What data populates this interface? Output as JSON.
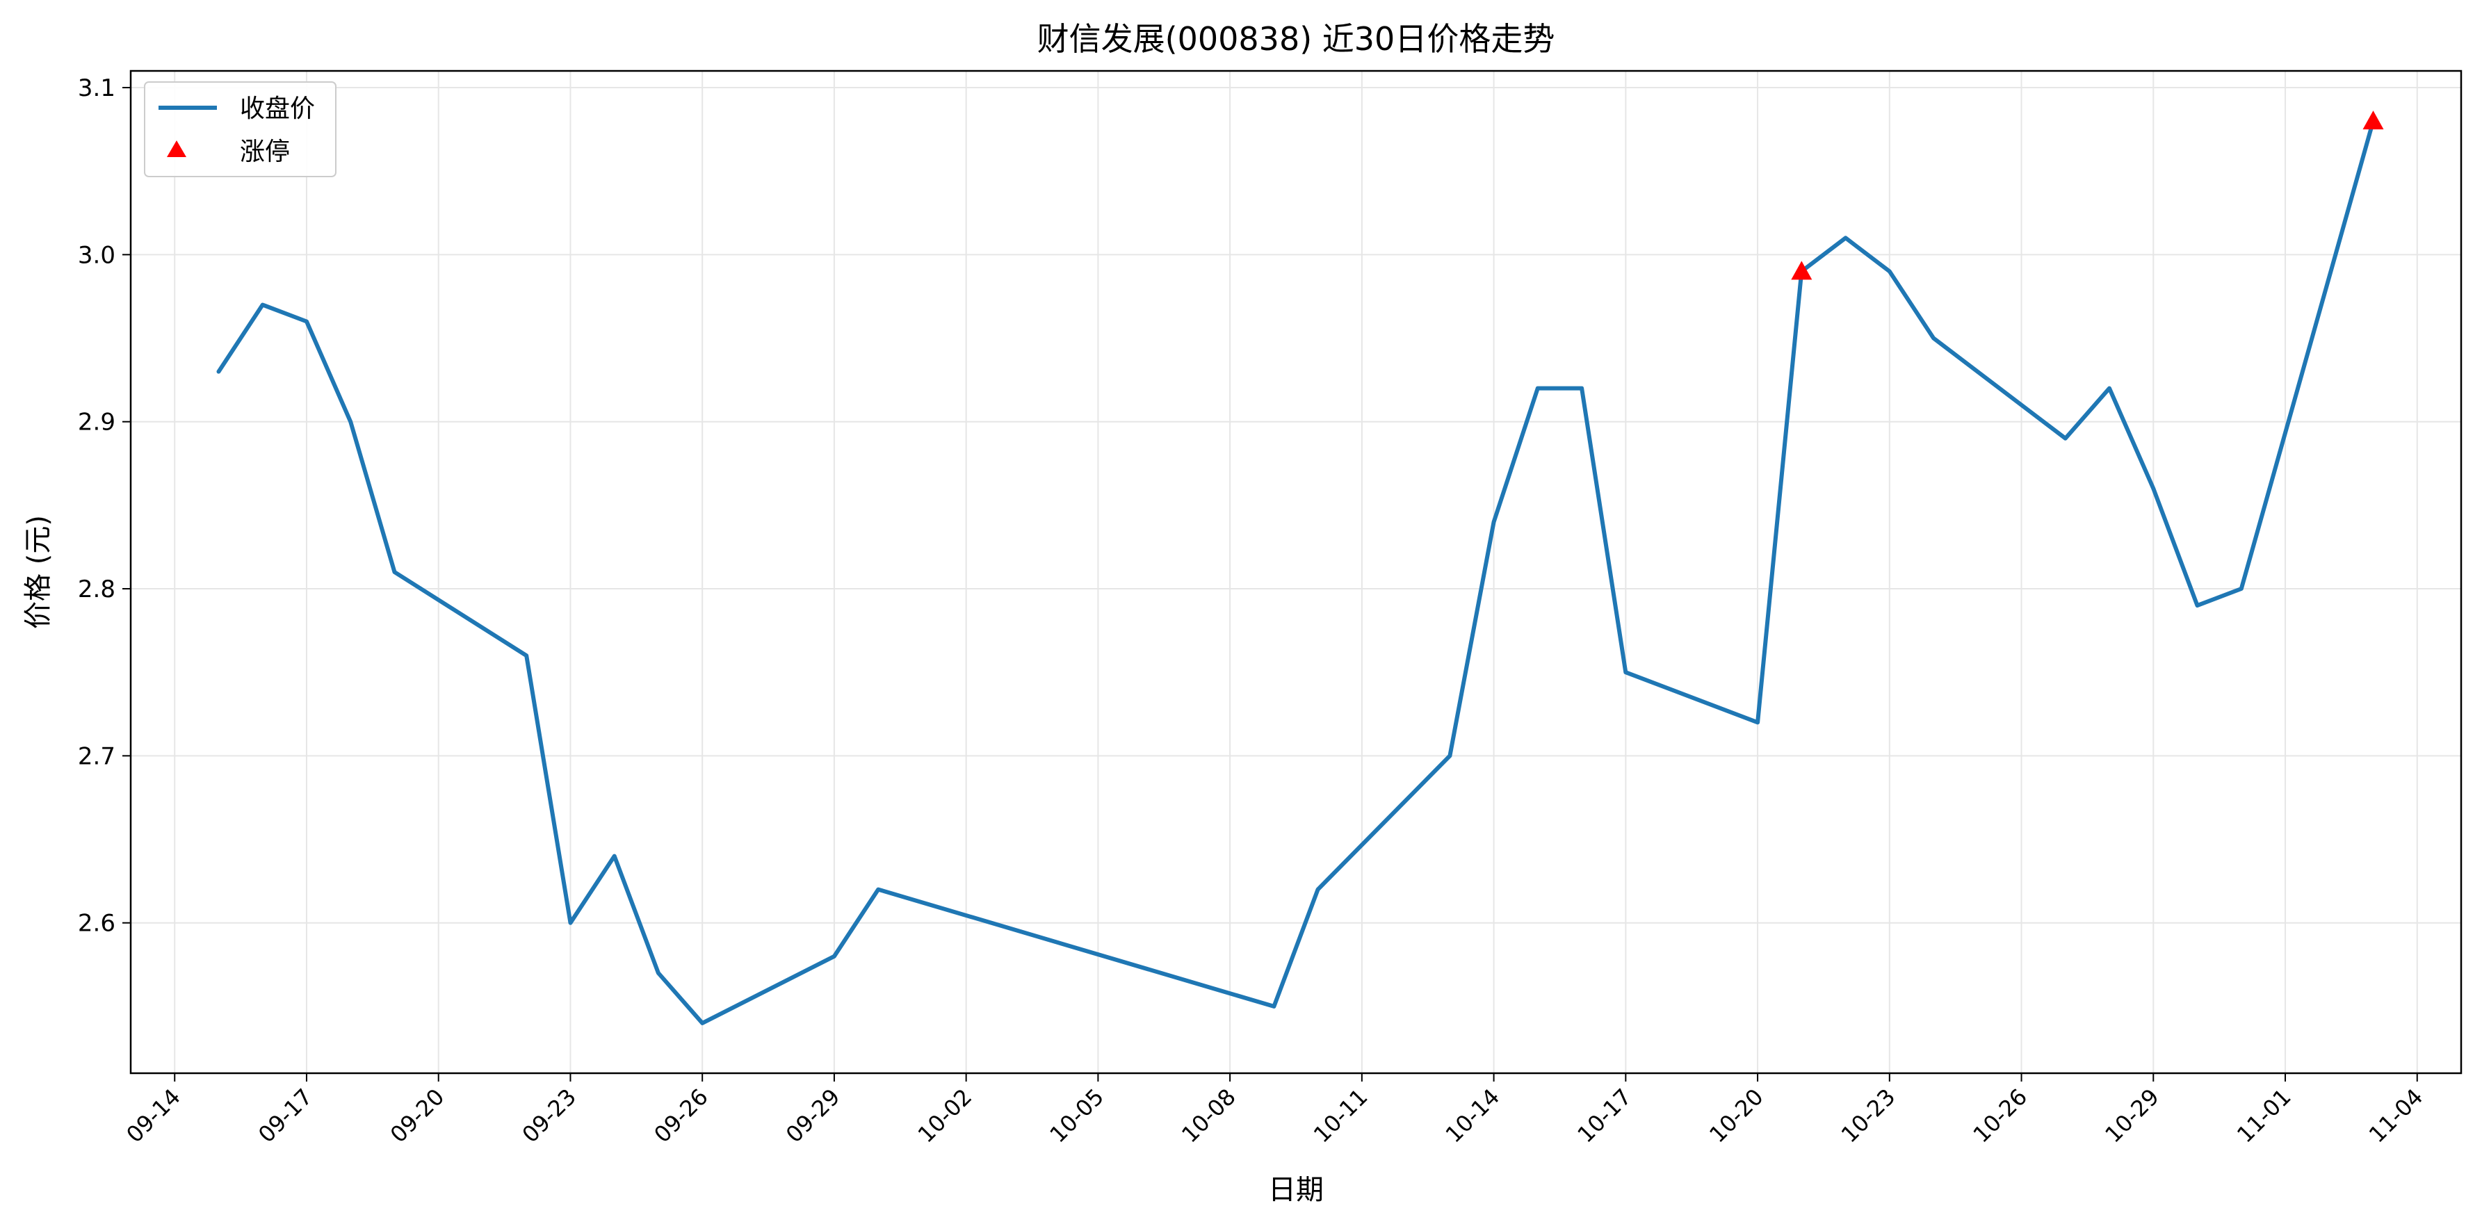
{
  "chart_data": {
    "type": "line",
    "title": "财信发展(000838) 近30日价格走势",
    "xlabel": "日期",
    "ylabel": "价格 (元)",
    "x_ticks": [
      "09-14",
      "09-17",
      "09-20",
      "09-23",
      "09-26",
      "09-29",
      "10-02",
      "10-05",
      "10-08",
      "10-11",
      "10-14",
      "10-17",
      "10-20",
      "10-23",
      "10-26",
      "10-29",
      "11-01",
      "11-04"
    ],
    "y_ticks": [
      "2.6",
      "2.7",
      "2.8",
      "2.9",
      "3.0",
      "3.1"
    ],
    "xlim": [
      "09-13",
      "11-05"
    ],
    "ylim": [
      2.51,
      3.11
    ],
    "grid": true,
    "legend_position": "top-left",
    "colors": {
      "line": "#1f77b4",
      "limit_up": "#ff0000",
      "grid": "#e6e6e6"
    },
    "series": [
      {
        "name": "收盘价",
        "kind": "line",
        "x": [
          "09-15",
          "09-16",
          "09-17",
          "09-18",
          "09-19",
          "09-22",
          "09-23",
          "09-24",
          "09-25",
          "09-26",
          "09-29",
          "09-30",
          "10-09",
          "10-10",
          "10-13",
          "10-14",
          "10-15",
          "10-16",
          "10-17",
          "10-20",
          "10-21",
          "10-22",
          "10-23",
          "10-24",
          "10-27",
          "10-28",
          "10-29",
          "10-30",
          "10-31",
          "11-03"
        ],
        "y": [
          2.93,
          2.97,
          2.96,
          2.9,
          2.81,
          2.76,
          2.6,
          2.64,
          2.57,
          2.54,
          2.58,
          2.62,
          2.55,
          2.62,
          2.7,
          2.84,
          2.92,
          2.92,
          2.75,
          2.72,
          2.99,
          3.01,
          2.99,
          2.95,
          2.89,
          2.92,
          2.86,
          2.79,
          2.8,
          3.08
        ]
      },
      {
        "name": "涨停",
        "kind": "scatter",
        "x": [
          "10-21",
          "11-03"
        ],
        "y": [
          2.99,
          3.08
        ]
      }
    ]
  }
}
